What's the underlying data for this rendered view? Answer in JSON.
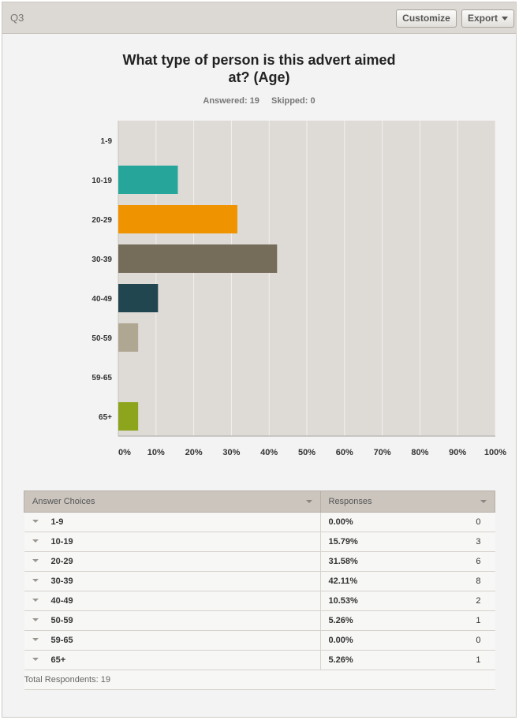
{
  "header": {
    "question_label": "Q3",
    "customize_label": "Customize",
    "export_label": "Export"
  },
  "question": {
    "title_line1": "What type of person is this advert aimed",
    "title_line2": "at? (Age)",
    "answered": "Answered: 19",
    "skipped": "Skipped: 0"
  },
  "colors": {
    "10-19": "#26a69a",
    "20-29": "#ef9300",
    "30-39": "#756c5a",
    "40-49": "#214650",
    "50-59": "#b0a793",
    "65+": "#8ca51c",
    "plot_bg": "#dedad6"
  },
  "chart_data": {
    "type": "bar",
    "orientation": "horizontal",
    "categories": [
      "1-9",
      "10-19",
      "20-29",
      "30-39",
      "40-49",
      "50-59",
      "59-65",
      "65+"
    ],
    "values": [
      0.0,
      15.79,
      31.58,
      42.11,
      10.53,
      5.26,
      0.0,
      5.26
    ],
    "xlim": [
      0,
      100
    ],
    "xticks": [
      "0%",
      "10%",
      "20%",
      "30%",
      "40%",
      "50%",
      "60%",
      "70%",
      "80%",
      "90%",
      "100%"
    ],
    "grid": true
  },
  "table": {
    "col_choices": "Answer Choices",
    "col_responses": "Responses",
    "rows": [
      {
        "choice": "1-9",
        "percent": "0.00%",
        "count": "0"
      },
      {
        "choice": "10-19",
        "percent": "15.79%",
        "count": "3"
      },
      {
        "choice": "20-29",
        "percent": "31.58%",
        "count": "6"
      },
      {
        "choice": "30-39",
        "percent": "42.11%",
        "count": "8"
      },
      {
        "choice": "40-49",
        "percent": "10.53%",
        "count": "2"
      },
      {
        "choice": "50-59",
        "percent": "5.26%",
        "count": "1"
      },
      {
        "choice": "59-65",
        "percent": "0.00%",
        "count": "0"
      },
      {
        "choice": "65+",
        "percent": "5.26%",
        "count": "1"
      }
    ],
    "total": "Total Respondents: 19"
  }
}
